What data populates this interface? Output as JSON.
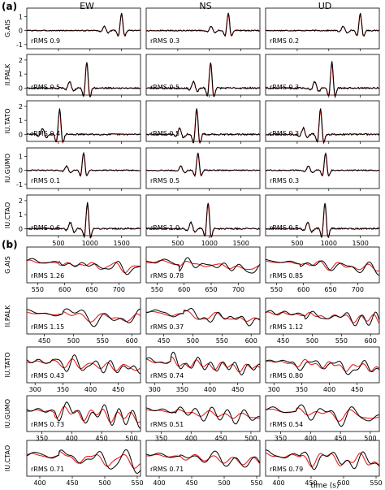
{
  "columns": [
    "EW",
    "NS",
    "UD"
  ],
  "x_label": "time (s)",
  "colors": {
    "observed": "#000000",
    "synthetic": "#e8201f"
  },
  "panel_a": {
    "label": "(a)",
    "chart_data": {
      "type": "line",
      "grid": false,
      "x_ticks": [
        "500",
        "1000",
        "1500"
      ],
      "xlim": [
        0,
        1800
      ],
      "series_names": [],
      "stations": [
        {
          "name": "G.AIS",
          "y_ticks": [
            "1",
            "0",
            "-1"
          ],
          "ylim": [
            -1.3,
            1.6
          ],
          "rrms": [
            "rRMS 0.9",
            "rRMS 0.3",
            "rRMS 0.2"
          ],
          "peaks": [
            1500,
            1300,
            1500
          ]
        },
        {
          "name": "II.PALK",
          "y_ticks": [
            "2",
            "1",
            "0"
          ],
          "ylim": [
            -0.5,
            2.4
          ],
          "rrms": [
            "rRMS 0.5",
            "rRMS 0.5",
            "rRMS 0.3"
          ],
          "peaks": [
            950,
            1020,
            1050
          ]
        },
        {
          "name": "IU.TATO",
          "y_ticks": [
            "2",
            "1",
            "0"
          ],
          "ylim": [
            -0.5,
            2.4
          ],
          "rrms": [
            "rRMS 0.4",
            "rRMS 0.5",
            "rRMS 0.3"
          ],
          "peaks": [
            520,
            800,
            870
          ]
        },
        {
          "name": "IU.GUMO",
          "y_ticks": [
            "1",
            "0",
            "-1"
          ],
          "ylim": [
            -1.3,
            1.6
          ],
          "rrms": [
            "rRMS 0.1",
            "rRMS 0.5",
            "rRMS 0.3"
          ],
          "peaks": [
            900,
            820,
            950
          ]
        },
        {
          "name": "IU.CTAO",
          "y_ticks": [
            "2",
            "1",
            "0"
          ],
          "ylim": [
            -0.5,
            2.4
          ],
          "rrms": [
            "rRMS 0.6",
            "rRMS 1.0",
            "rRMS 0.5"
          ],
          "peaks": [
            960,
            980,
            940
          ]
        }
      ]
    }
  },
  "panel_b": {
    "label": "(b)",
    "chart_data": {
      "type": "line",
      "grid": false,
      "stations": [
        {
          "name": "G.AIS",
          "rrms": [
            "rRMS 1.26",
            "rRMS 0.78",
            "rRMS 0.85"
          ],
          "x_ticks": [
            [
              "550",
              "600",
              "650",
              "700"
            ],
            [
              "550",
              "600",
              "650",
              "700"
            ],
            [
              "550",
              "600",
              "650",
              "700"
            ]
          ],
          "xlim": [
            [
              530,
              740
            ],
            [
              530,
              740
            ],
            [
              530,
              740
            ]
          ]
        },
        {
          "name": "II.PALK",
          "rrms": [
            "rRMS 1.15",
            "rRMS 0.37",
            "rRMS 1.12"
          ],
          "x_ticks": [
            [
              "450",
              "500",
              "550",
              "600"
            ],
            [
              "450",
              "500",
              "550",
              "600"
            ],
            [
              "450",
              "500",
              "550",
              "600"
            ]
          ],
          "xlim": [
            [
              420,
              615
            ],
            [
              420,
              615
            ],
            [
              420,
              615
            ]
          ]
        },
        {
          "name": "IU.TATO",
          "rrms": [
            "rRMS 0.43",
            "rRMS 0.74",
            "rRMS 0.80"
          ],
          "x_ticks": [
            [
              "300",
              "350",
              "400",
              "450"
            ],
            [
              "300",
              "350",
              "400",
              "450"
            ],
            [
              "300",
              "350",
              "400",
              "450"
            ]
          ],
          "xlim": [
            [
              285,
              490
            ],
            [
              285,
              490
            ],
            [
              285,
              490
            ]
          ]
        },
        {
          "name": "IU.GUMO",
          "rrms": [
            "rRMS 0.73",
            "rRMS 0.51",
            "rRMS 0.54"
          ],
          "x_ticks": [
            [
              "350",
              "400",
              "450",
              "500"
            ],
            [
              "350",
              "400",
              "450",
              "500"
            ],
            [
              "350",
              "400",
              "450",
              "500"
            ]
          ],
          "xlim": [
            [
              325,
              515
            ],
            [
              325,
              515
            ],
            [
              325,
              515
            ]
          ]
        },
        {
          "name": "IU.CTAO",
          "rrms": [
            "rRMS 0.71",
            "rRMS 0.71",
            "rRMS 0.79"
          ],
          "x_ticks": [
            [
              "400",
              "450",
              "500",
              "550"
            ],
            [
              "400",
              "450",
              "500",
              "550"
            ],
            [
              "400",
              "450",
              "500",
              "550"
            ]
          ],
          "xlim": [
            [
              380,
              555
            ],
            [
              380,
              555
            ],
            [
              380,
              555
            ]
          ]
        }
      ]
    }
  }
}
